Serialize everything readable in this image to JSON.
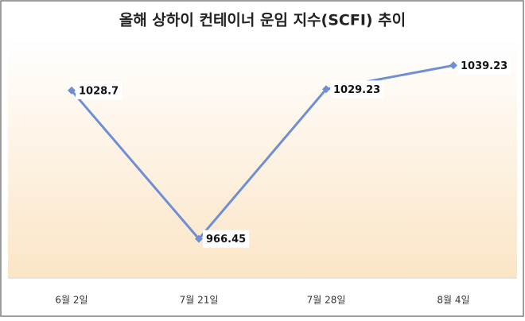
{
  "chart_data": {
    "type": "line",
    "title": "올해 상하이 컨테이너 운임 지수(SCFI) 추이",
    "categories": [
      "6월 2일",
      "7월 21일",
      "7월 28일",
      "8월 4일"
    ],
    "series": [
      {
        "name": "SCFI",
        "color": "#6f8fd4",
        "values": [
          1028.7,
          966.45,
          1029.23,
          1039.23
        ]
      }
    ],
    "ylim": [
      950,
      1050
    ]
  }
}
